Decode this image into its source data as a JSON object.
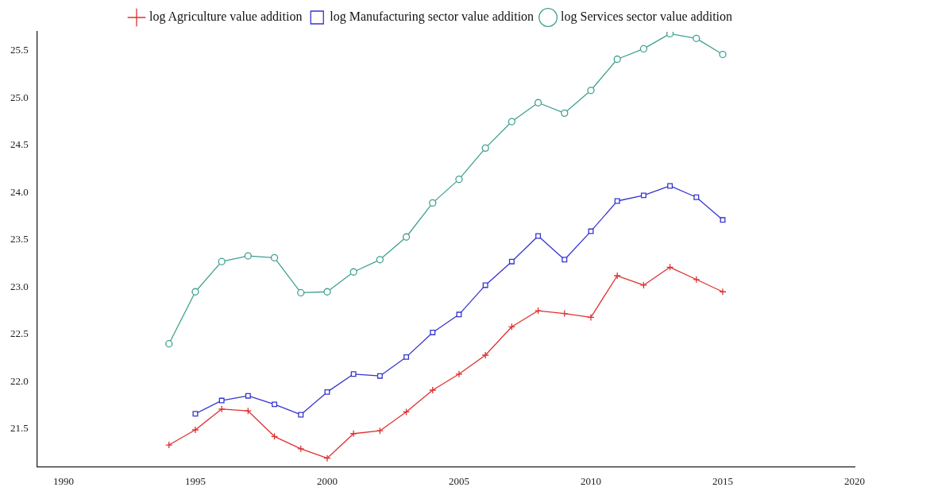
{
  "chart_data": {
    "type": "line",
    "x": [
      1994,
      1995,
      1996,
      1997,
      1998,
      1999,
      2000,
      2001,
      2002,
      2003,
      2004,
      2005,
      2006,
      2007,
      2008,
      2009,
      2010,
      2011,
      2012,
      2013,
      2014,
      2015
    ],
    "series": [
      {
        "name": "log Agriculture value addition",
        "color": "#e03030",
        "marker": "cross",
        "values": [
          21.33,
          21.49,
          21.71,
          21.69,
          21.42,
          21.29,
          21.19,
          21.45,
          21.48,
          21.68,
          21.91,
          22.08,
          22.28,
          22.58,
          22.75,
          22.72,
          22.68,
          23.12,
          23.02,
          23.21,
          23.08,
          22.95
        ]
      },
      {
        "name": "log Manufacturing sector value addition",
        "color": "#3535d0",
        "marker": "square",
        "values": [
          null,
          21.66,
          21.8,
          21.85,
          21.76,
          21.65,
          21.89,
          22.08,
          22.06,
          22.26,
          22.52,
          22.71,
          23.02,
          23.27,
          23.54,
          23.29,
          23.59,
          23.91,
          23.97,
          24.07,
          23.95,
          23.71
        ]
      },
      {
        "name": "log Services sector value addition",
        "color": "#40a090",
        "marker": "circle",
        "values": [
          22.4,
          22.95,
          23.27,
          23.33,
          23.31,
          22.94,
          22.95,
          23.16,
          23.29,
          23.53,
          23.89,
          24.14,
          24.47,
          24.75,
          24.95,
          24.84,
          25.08,
          25.41,
          25.52,
          25.68,
          25.63,
          25.46
        ]
      }
    ],
    "xlim": [
      1989,
      2020
    ],
    "xticks": [
      1990,
      1995,
      2000,
      2005,
      2010,
      2015,
      2020
    ],
    "ylim": [
      21.1,
      25.7
    ],
    "yticks": [
      {
        "value": 21.5,
        "label": "21.5"
      },
      {
        "value": 22,
        "label": "22.0"
      },
      {
        "value": 22.5,
        "label": "22.5"
      },
      {
        "value": 23,
        "label": "23.0"
      },
      {
        "value": 23.5,
        "label": "23.5"
      },
      {
        "value": 24,
        "label": "24.0"
      },
      {
        "value": 24.5,
        "label": "24.5"
      },
      {
        "value": 25,
        "label": "25.0"
      },
      {
        "value": 25.5,
        "label": "25.5"
      }
    ],
    "grid": false,
    "legend": "top",
    "line_style": "solid"
  }
}
